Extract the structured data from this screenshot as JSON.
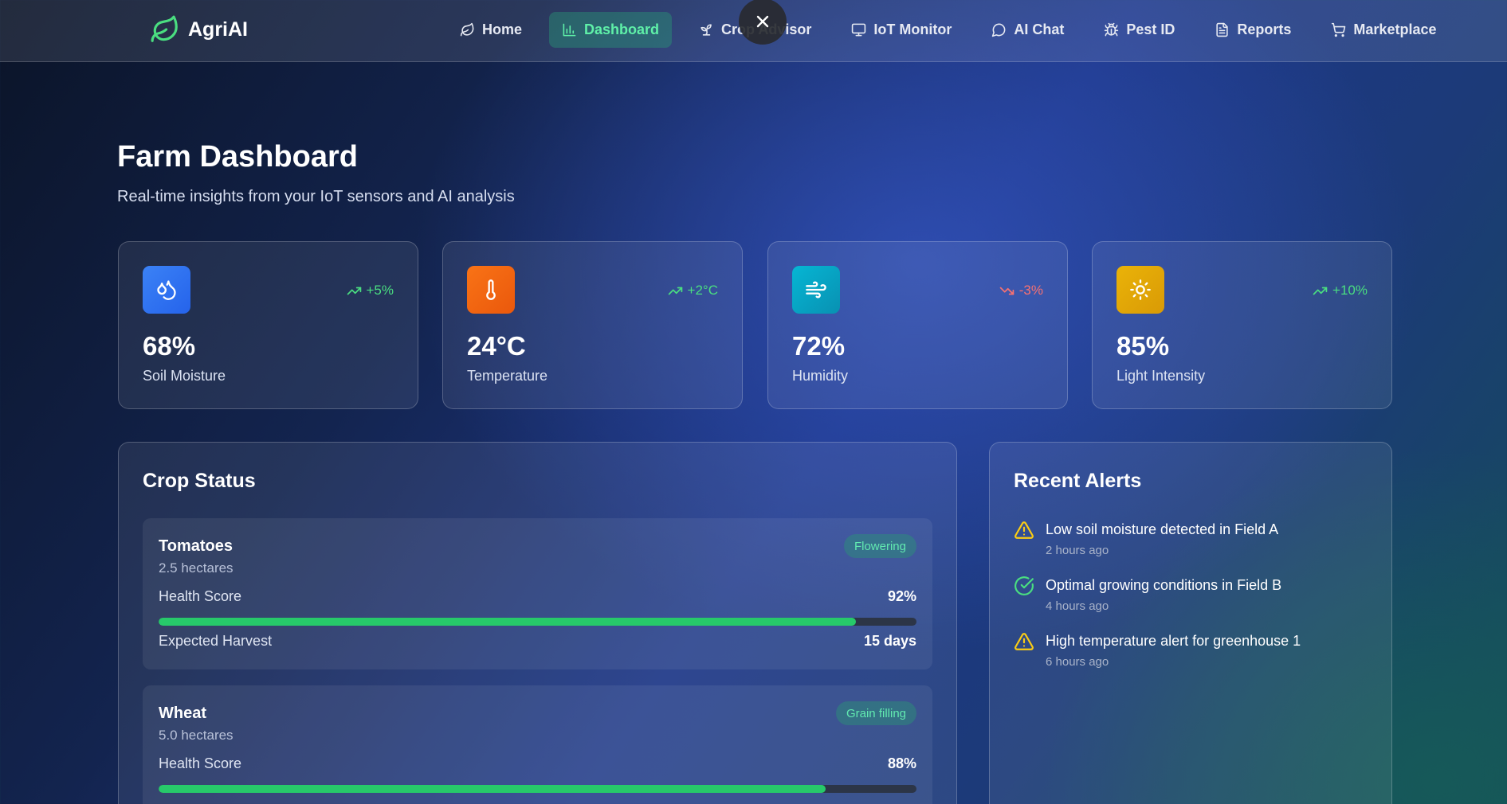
{
  "brand": {
    "name": "AgriAI",
    "logo_icon": "leaf-icon",
    "accent": "#4ade80"
  },
  "nav": {
    "items": [
      {
        "label": "Home",
        "icon": "leaf-icon",
        "active": false
      },
      {
        "label": "Dashboard",
        "icon": "bar-chart-icon",
        "active": true
      },
      {
        "label": "Crop Advisor",
        "icon": "sprout-icon",
        "active": false
      },
      {
        "label": "IoT Monitor",
        "icon": "monitor-icon",
        "active": false
      },
      {
        "label": "AI Chat",
        "icon": "chat-bubble-icon",
        "active": false
      },
      {
        "label": "Pest ID",
        "icon": "bug-icon",
        "active": false
      },
      {
        "label": "Reports",
        "icon": "document-icon",
        "active": false
      },
      {
        "label": "Marketplace",
        "icon": "cart-icon",
        "active": false
      }
    ],
    "close_icon": "close-icon"
  },
  "header": {
    "title": "Farm Dashboard",
    "subtitle": "Real-time insights from your IoT sensors and AI analysis"
  },
  "stats": [
    {
      "value": "68%",
      "label": "Soil Moisture",
      "trend": "+5%",
      "trend_dir": "up",
      "icon": "droplets-icon",
      "color": "#2f74ef"
    },
    {
      "value": "24°C",
      "label": "Temperature",
      "trend": "+2°C",
      "trend_dir": "up",
      "icon": "thermometer-icon",
      "color": "#f2601a"
    },
    {
      "value": "72%",
      "label": "Humidity",
      "trend": "-3%",
      "trend_dir": "down",
      "icon": "wind-icon",
      "color": "#12aed2"
    },
    {
      "value": "85%",
      "label": "Light Intensity",
      "trend": "+10%",
      "trend_dir": "up",
      "icon": "sun-icon",
      "color": "#e8a80c"
    }
  ],
  "colors": {
    "trend_up": "#4ade80",
    "trend_down": "#f87171",
    "health_bar": "#27c96a"
  },
  "crop_status": {
    "title": "Crop Status",
    "health_label": "Health Score",
    "harvest_label": "Expected Harvest",
    "crops": [
      {
        "name": "Tomatoes",
        "area": "2.5 hectares",
        "stage": "Flowering",
        "health": "92%",
        "health_value": 92,
        "harvest": "15 days"
      },
      {
        "name": "Wheat",
        "area": "5.0 hectares",
        "stage": "Grain filling",
        "health": "88%",
        "health_value": 88
      }
    ]
  },
  "alerts": {
    "title": "Recent Alerts",
    "items": [
      {
        "text": "Low soil moisture detected in Field A",
        "time": "2 hours ago",
        "type": "warning",
        "icon": "warning-triangle-icon"
      },
      {
        "text": "Optimal growing conditions in Field B",
        "time": "4 hours ago",
        "type": "success",
        "icon": "check-circle-icon"
      },
      {
        "text": "High temperature alert for greenhouse 1",
        "time": "6 hours ago",
        "type": "warning",
        "icon": "warning-triangle-icon"
      }
    ]
  }
}
